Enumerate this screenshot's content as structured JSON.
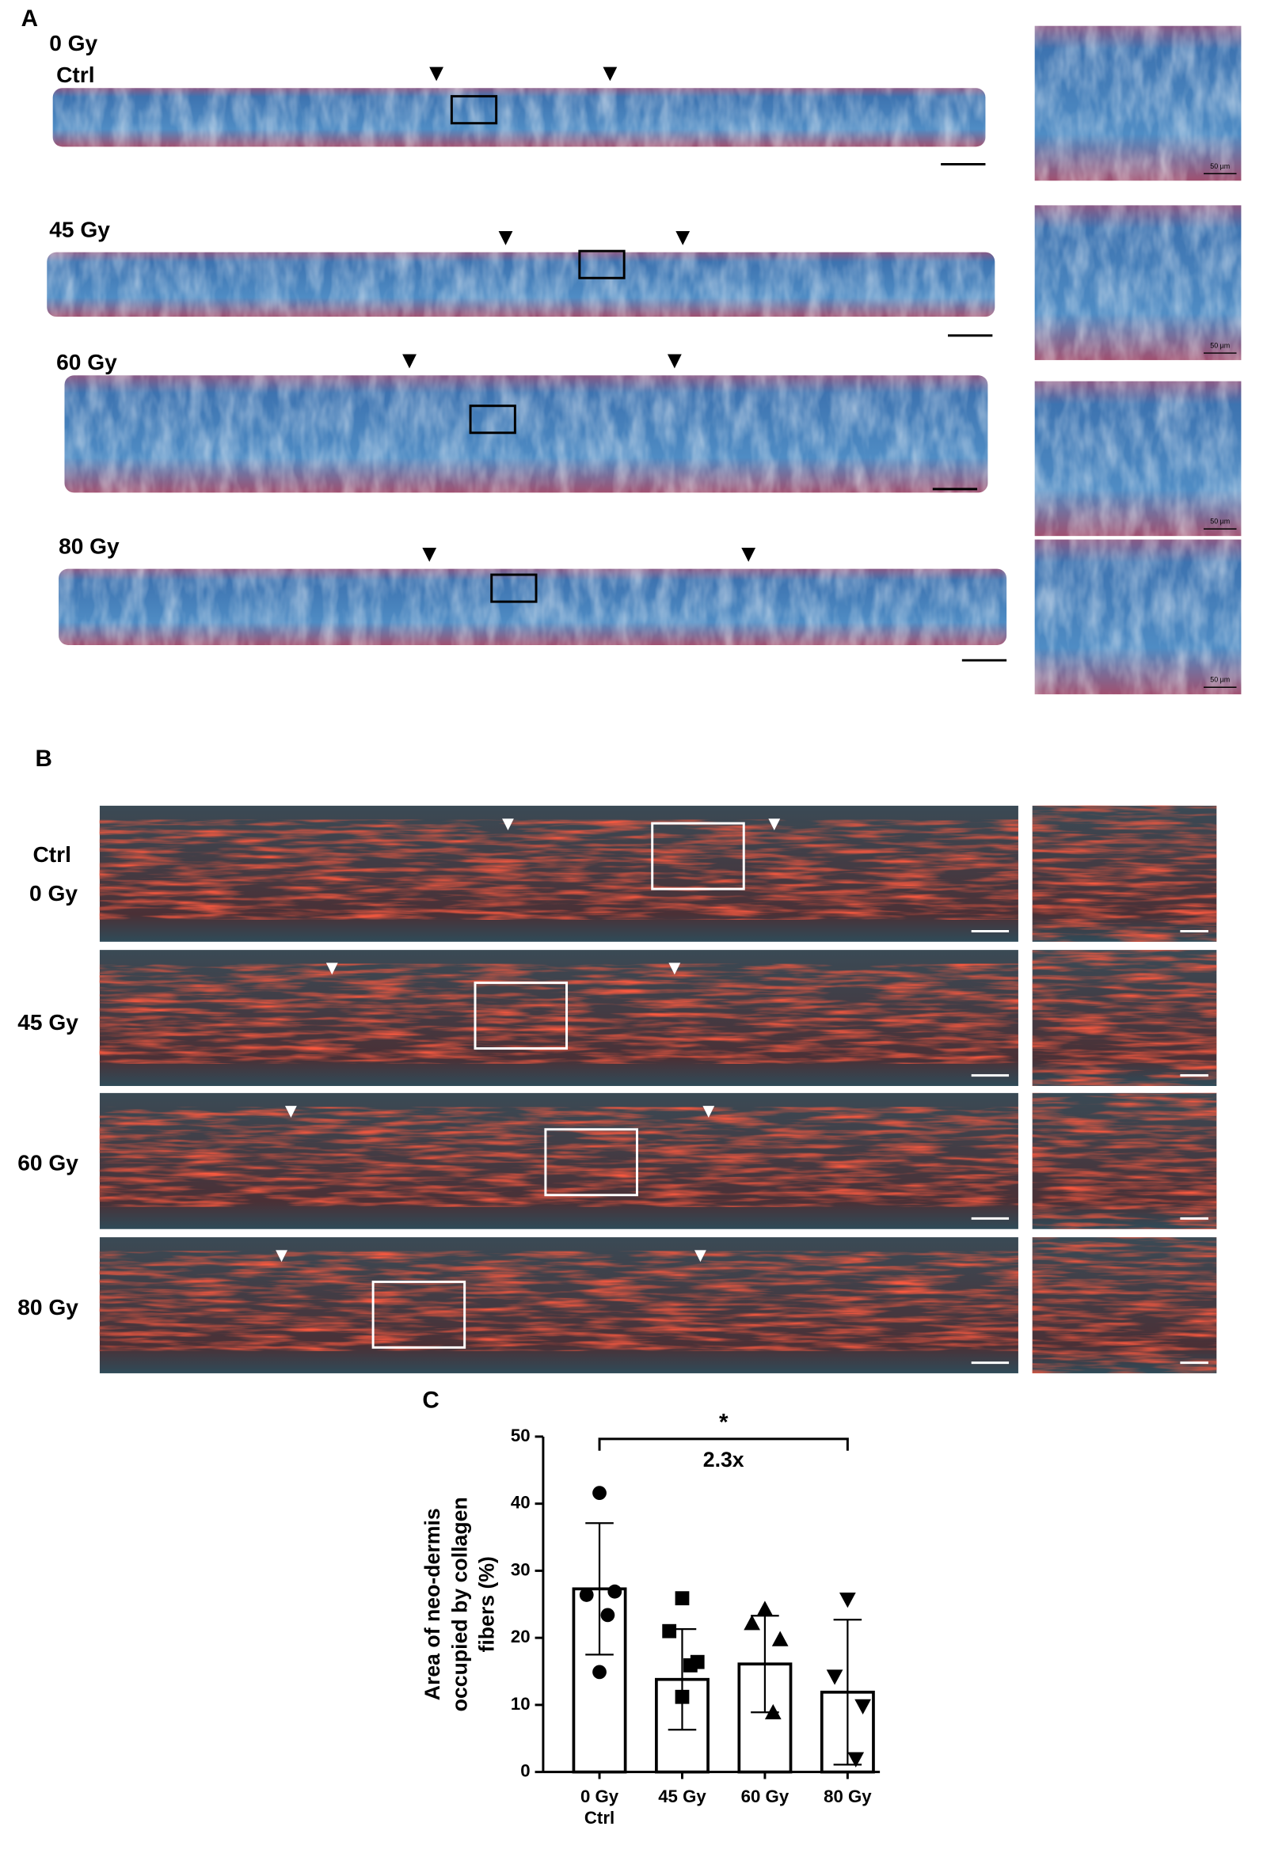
{
  "panels": {
    "A": {
      "label": "A",
      "rows": [
        [
          "0 Gy",
          "Ctrl"
        ],
        [
          "45 Gy"
        ],
        [
          "60 Gy"
        ],
        [
          "80 Gy"
        ]
      ],
      "scale_label": "50 µm"
    },
    "B": {
      "label": "B",
      "rows": [
        [
          "Ctrl",
          "0 Gy"
        ],
        [
          "45 Gy"
        ],
        [
          "60 Gy"
        ],
        [
          "80 Gy"
        ]
      ]
    },
    "C": {
      "label": "C"
    }
  },
  "chart_data": {
    "type": "bar",
    "ylabel": [
      "Area of neo-dermis",
      "occupied by collagen",
      "fibers (%)"
    ],
    "categories": [
      [
        "0 Gy",
        "Ctrl"
      ],
      [
        "45 Gy"
      ],
      [
        "60 Gy"
      ],
      [
        "80 Gy"
      ]
    ],
    "values": [
      27.3,
      13.8,
      16.1,
      11.9
    ],
    "errors": [
      9.8,
      7.5,
      7.2,
      10.8
    ],
    "points": [
      [
        41.6,
        26.4,
        26.9,
        23.4,
        14.9
      ],
      [
        25.9,
        21,
        16.4,
        15.9,
        11.2
      ],
      [
        24.3,
        22.2,
        19.8,
        8.9
      ],
      [
        25.7,
        14.2,
        9.8,
        1.9
      ]
    ],
    "markers": [
      "circle",
      "square",
      "triangle",
      "triangle-down"
    ],
    "color": "#ffffff",
    "edge": "#000000",
    "ylim": [
      0,
      50
    ],
    "yticks": [
      0,
      10,
      20,
      30,
      40,
      50
    ],
    "bracket": [
      0,
      3
    ],
    "annotations": [
      "*",
      "2.3x"
    ]
  }
}
